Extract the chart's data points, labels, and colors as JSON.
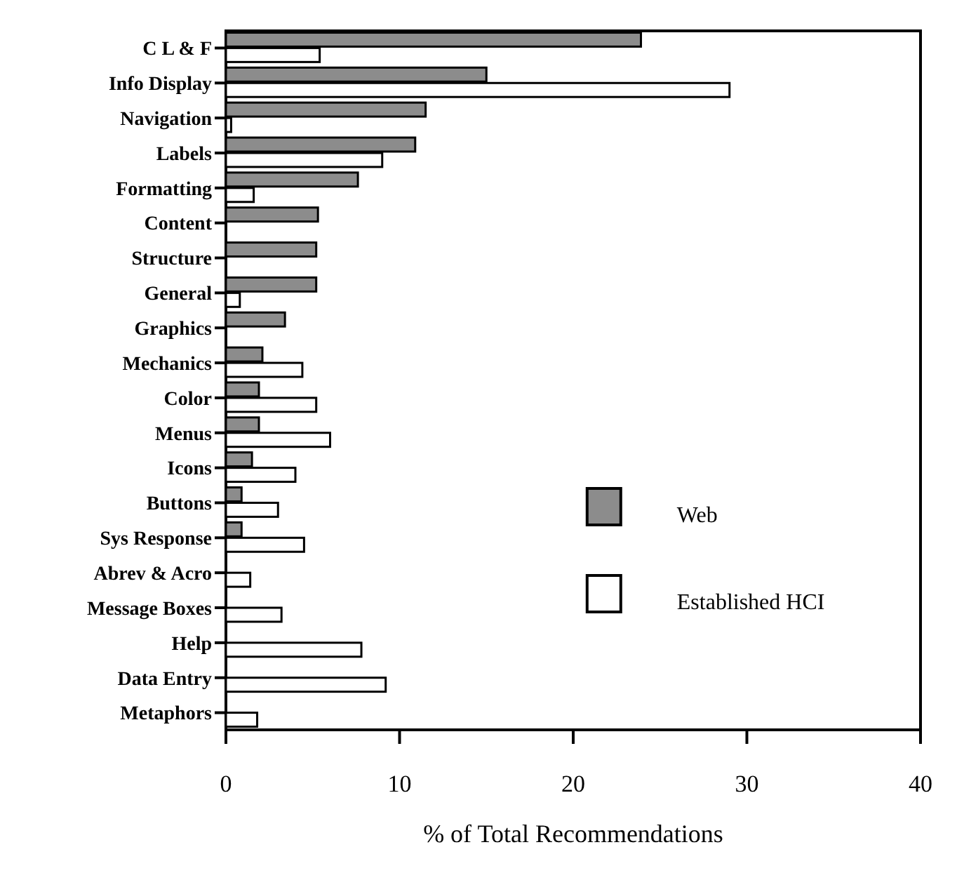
{
  "chart_data": {
    "type": "bar",
    "orientation": "horizontal",
    "xlabel": "% of Total Recommendations",
    "categories": [
      "C L & F",
      "Info Display",
      "Navigation",
      "Labels",
      "Formatting",
      "Content",
      "Structure",
      "General",
      "Graphics",
      "Mechanics",
      "Color",
      "Menus",
      "Icons",
      "Buttons",
      "Sys Response",
      "Abrev & Acro",
      "Message Boxes",
      "Help",
      "Data Entry",
      "Metaphors"
    ],
    "series": [
      {
        "name": "Web",
        "color": "#8c8c8c",
        "values": [
          23.9,
          15.0,
          11.5,
          10.9,
          7.6,
          5.3,
          5.2,
          5.2,
          3.4,
          2.1,
          1.9,
          1.9,
          1.5,
          0.9,
          0.9,
          null,
          null,
          null,
          null,
          null
        ]
      },
      {
        "name": "Established HCI",
        "color": "#ffffff",
        "values": [
          5.4,
          29.0,
          0.3,
          9.0,
          1.6,
          null,
          null,
          0.8,
          null,
          4.4,
          5.2,
          6.0,
          4.0,
          3.0,
          4.5,
          1.4,
          3.2,
          7.8,
          9.2,
          1.8
        ]
      }
    ],
    "xlim": [
      0,
      40
    ],
    "xticks": [
      0,
      10,
      20,
      30,
      40
    ],
    "legend": "right",
    "grid": false
  }
}
